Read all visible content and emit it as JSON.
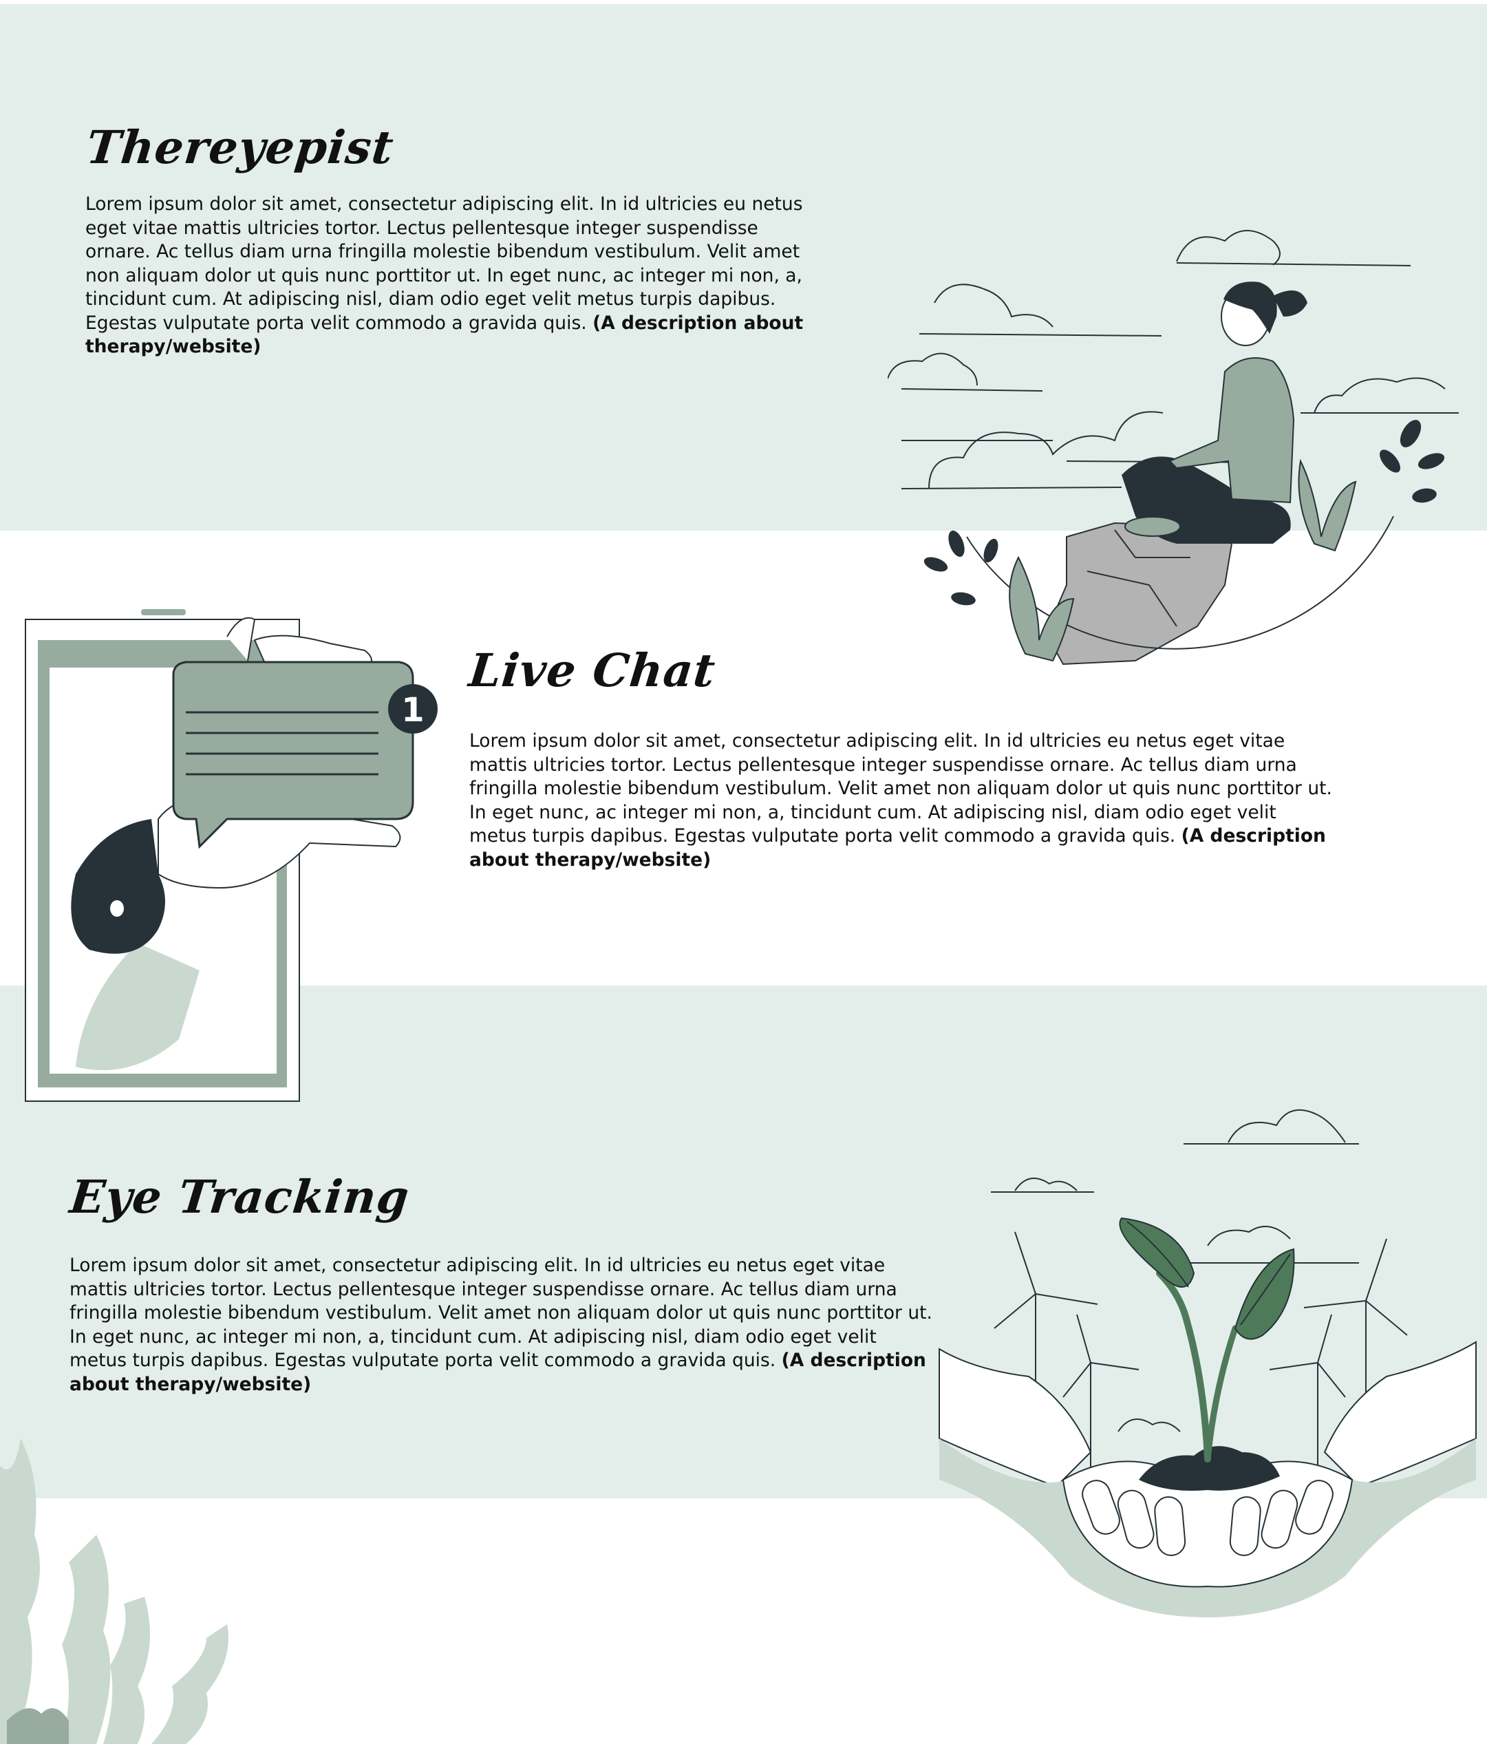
{
  "sections": [
    {
      "title": "Thereyepist",
      "body": "Lorem ipsum dolor sit amet, consectetur adipiscing elit. In id ultricies eu netus eget vitae mattis ultricies tortor. Lectus pellentesque integer suspendisse ornare. Ac tellus diam urna fringilla molestie bibendum vestibulum. Velit amet non aliquam dolor ut quis nunc porttitor ut. In eget nunc, ac integer mi non, a, tincidunt cum. At adipiscing nisl, diam odio eget velit metus turpis dapibus. Egestas vulputate porta velit commodo a gravida quis.",
      "note": "(A description about therapy/website)"
    },
    {
      "title": "Live Chat",
      "body": "Lorem ipsum dolor sit amet, consectetur adipiscing elit. In id ultricies eu netus eget vitae mattis ultricies tortor. Lectus pellentesque integer suspendisse ornare. Ac tellus diam urna fringilla molestie bibendum vestibulum. Velit amet non aliquam dolor ut quis nunc porttitor ut. In eget nunc, ac integer mi non, a, tincidunt cum. At adipiscing nisl, diam odio eget velit metus turpis dapibus. Egestas vulputate porta velit commodo a gravida quis.",
      "note": "(A description about therapy/website)"
    },
    {
      "title": "Eye Tracking",
      "body": "Lorem ipsum dolor sit amet, consectetur adipiscing elit. In id ultricies eu netus eget vitae mattis ultricies tortor. Lectus pellentesque integer suspendisse ornare. Ac tellus diam urna fringilla molestie bibendum vestibulum. Velit amet non aliquam dolor ut quis nunc porttitor ut. In eget nunc, ac integer mi non, a, tincidunt cum. At adipiscing nisl, diam odio eget velit metus turpis dapibus. Egestas vulputate porta velit commodo a gravida quis.",
      "note": "(A description about therapy/website)"
    }
  ],
  "chat_badge": "1",
  "colors": {
    "band": "#e3eeea",
    "sage": "#97ac9e",
    "sage_light": "#c9d9cf",
    "dark": "#263238",
    "leaf_dark": "#4f7a5a",
    "rock": "#b3b3b3"
  },
  "icons": {
    "meditation": "meditation-illustration",
    "chat": "phone-chat-illustration",
    "plant": "plant-in-hands-illustration",
    "leaves": "decorative-leaves"
  }
}
